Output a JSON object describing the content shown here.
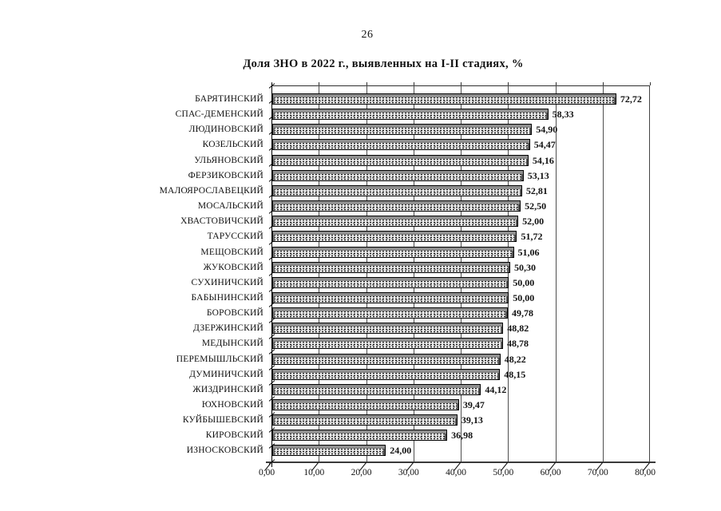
{
  "page": {
    "number": "26"
  },
  "chart_data": {
    "type": "bar",
    "orientation": "horizontal",
    "title": "Доля ЗНО в 2022 г., выявленных на I-II стадиях, %",
    "xlabel": "",
    "ylabel": "",
    "xlim": [
      0,
      80
    ],
    "grid": true,
    "legend": "none",
    "x_tick_labels": [
      "0,00",
      "10,00",
      "20,00",
      "30,00",
      "40,00",
      "50,00",
      "60,00",
      "70,00",
      "80,00"
    ],
    "categories": [
      "БАРЯТИНСКИЙ",
      "СПАС-ДЕМЕНСКИЙ",
      "ЛЮДИНОВСКИЙ",
      "КОЗЕЛЬСКИЙ",
      "УЛЬЯНОВСКИЙ",
      "ФЕРЗИКОВСКИЙ",
      "МАЛОЯРОСЛАВЕЦКИЙ",
      "МОСАЛЬСКИЙ",
      "ХВАСТОВИЧСКИЙ",
      "ТАРУССКИЙ",
      "МЕЩОВСКИЙ",
      "ЖУКОВСКИЙ",
      "СУХИНИЧСКИЙ",
      "БАБЫНИНСКИЙ",
      "БОРОВСКИЙ",
      "ДЗЕРЖИНСКИЙ",
      "МЕДЫНСКИЙ",
      "ПЕРЕМЫШЛЬСКИЙ",
      "ДУМИНИЧСКИЙ",
      "ЖИЗДРИНСКИЙ",
      "ЮХНОВСКИЙ",
      "КУЙБЫШЕВСКИЙ",
      "КИРОВСКИЙ",
      "ИЗНОСКОВСКИЙ"
    ],
    "values": [
      72.72,
      58.33,
      54.9,
      54.47,
      54.16,
      53.13,
      52.81,
      52.5,
      52.0,
      51.72,
      51.06,
      50.3,
      50.0,
      50.0,
      49.78,
      48.82,
      48.78,
      48.22,
      48.15,
      44.12,
      39.47,
      39.13,
      36.98,
      24.0
    ],
    "value_labels": [
      "72,72",
      "58,33",
      "54,90",
      "54,47",
      "54,16",
      "53,13",
      "52,81",
      "52,50",
      "52,00",
      "51,72",
      "51,06",
      "50,30",
      "50,00",
      "50,00",
      "49,78",
      "48,82",
      "48,78",
      "48,22",
      "48,15",
      "44,12",
      "39,47",
      "39,13",
      "36,98",
      "24,00"
    ],
    "colors": {
      "bar_fill": "#ececec",
      "bar_speckle": "#1f1f1f",
      "bar_top_face": "#8e8e8e",
      "bar_border": "#000000",
      "gridline": "#4f4f4f",
      "axis": "#000000",
      "background": "#ffffff",
      "text": "#111111"
    }
  }
}
